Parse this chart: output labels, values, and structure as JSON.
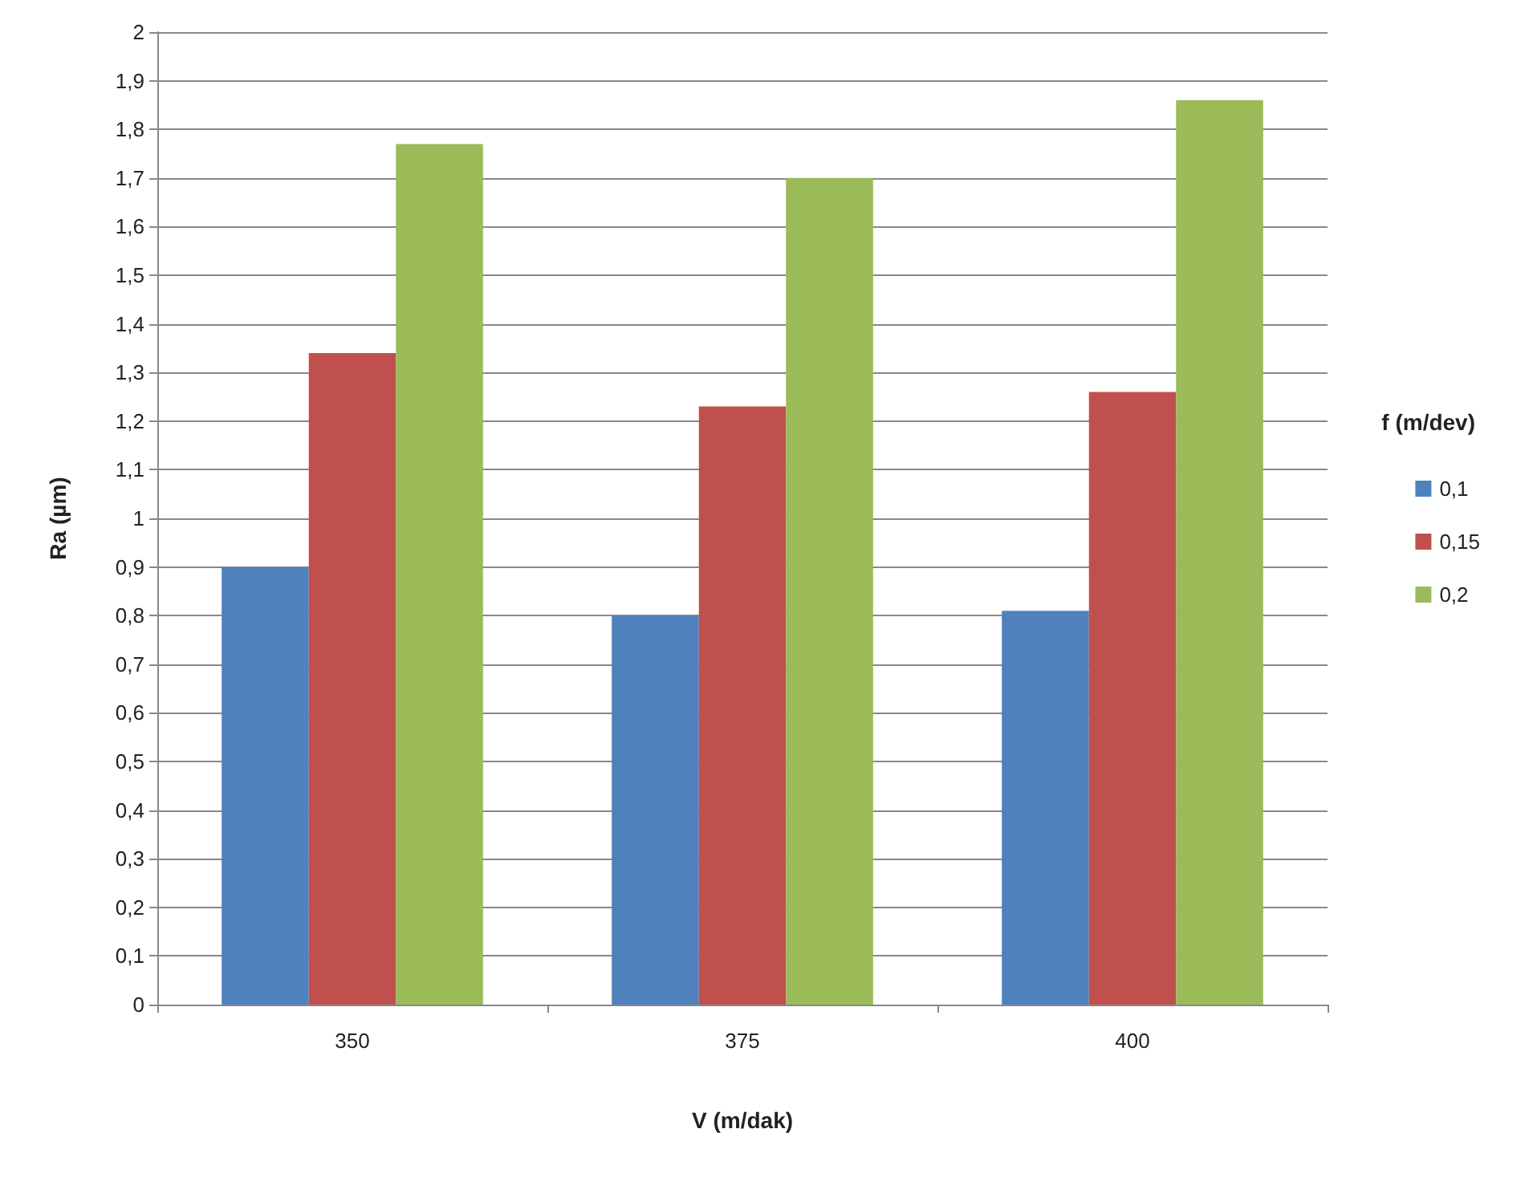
{
  "chart_data": {
    "type": "bar",
    "xlabel": "V (m/dak)",
    "ylabel": "Ra (µm)",
    "legend_title": "f (m/dev)",
    "categories": [
      "350",
      "375",
      "400"
    ],
    "series": [
      {
        "name": "0,1",
        "color": "#4f81bd",
        "values": [
          0.9,
          0.8,
          0.81
        ]
      },
      {
        "name": "0,15",
        "color": "#c0504d",
        "values": [
          1.34,
          1.23,
          1.26
        ]
      },
      {
        "name": "0,2",
        "color": "#9bbb59",
        "values": [
          1.77,
          1.7,
          1.86
        ]
      }
    ],
    "ylim": [
      0,
      2
    ],
    "yticks": [
      0,
      {
        "value": 0.1,
        "label": "0,1"
      },
      {
        "value": 0.2,
        "label": "0,2"
      },
      {
        "value": 0.3,
        "label": "0,3"
      },
      {
        "value": 0.4,
        "label": "0,4"
      },
      {
        "value": 0.5,
        "label": "0,5"
      },
      {
        "value": 0.6,
        "label": "0,6"
      },
      {
        "value": 0.7,
        "label": "0,7"
      },
      {
        "value": 0.8,
        "label": "0,8"
      },
      {
        "value": 0.9,
        "label": "0,9"
      },
      1,
      {
        "value": 1.1,
        "label": "1,1"
      },
      {
        "value": 1.2,
        "label": "1,2"
      },
      {
        "value": 1.3,
        "label": "1,3"
      },
      {
        "value": 1.4,
        "label": "1,4"
      },
      {
        "value": 1.5,
        "label": "1,5"
      },
      {
        "value": 1.6,
        "label": "1,6"
      },
      {
        "value": 1.7,
        "label": "1,7"
      },
      {
        "value": 1.8,
        "label": "1,8"
      },
      {
        "value": 1.9,
        "label": "1,9"
      },
      2
    ],
    "grid": "y",
    "legend": "right"
  }
}
